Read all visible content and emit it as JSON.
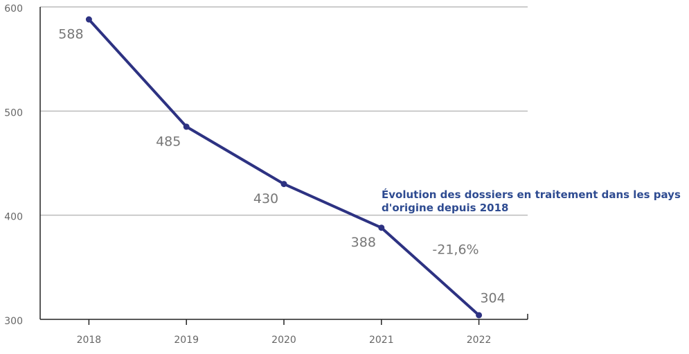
{
  "chart_data": {
    "type": "line",
    "categories": [
      "2018",
      "2019",
      "2020",
      "2021",
      "2022"
    ],
    "series": [
      {
        "name": null,
        "color": "#2d3282",
        "values": [
          588,
          485,
          430,
          388,
          304
        ]
      }
    ],
    "ylim": [
      300,
      600
    ],
    "yticks": [
      300,
      400,
      500,
      600
    ],
    "grid": true,
    "annotation": "Évolution des dossiers en traitement dans les pays d'origine depuis 2018",
    "annotation_color": "#2e4b91",
    "change_label": "-21,6%"
  }
}
